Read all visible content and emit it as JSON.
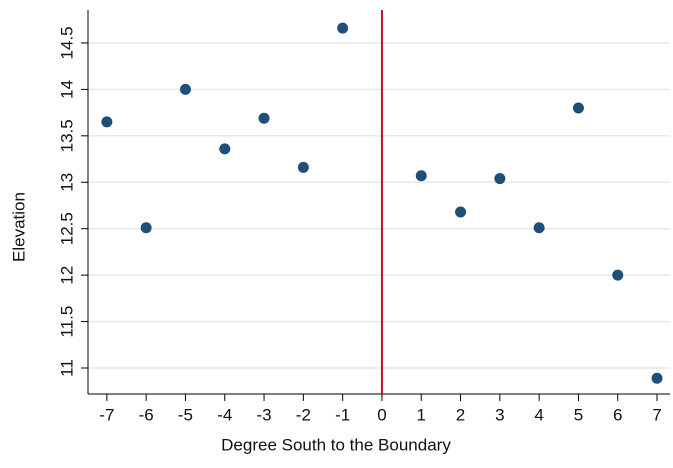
{
  "chart_data": {
    "type": "scatter",
    "x_label": "Degree South to the Boundary",
    "y_label": "Elevation",
    "x": [
      -7,
      -6,
      -5,
      -4,
      -3,
      -2,
      -1,
      1,
      2,
      3,
      4,
      5,
      6,
      7
    ],
    "series": [
      {
        "color": "#1f4e79",
        "values": [
          13.65,
          12.51,
          14.0,
          13.36,
          13.69,
          13.16,
          14.66,
          13.07,
          12.68,
          13.04,
          12.51,
          13.8,
          12.0,
          10.89
        ]
      }
    ],
    "xlim": [
      -7.48,
      7.33
    ],
    "ylim": [
      10.72,
      14.855
    ],
    "xticks": [
      -7,
      -6,
      -5,
      -4,
      -3,
      -2,
      -1,
      0,
      1,
      2,
      3,
      4,
      5,
      6,
      7
    ],
    "yticks": [
      11,
      11.5,
      12,
      12.5,
      13,
      13.5,
      14,
      14.5
    ],
    "grid": true,
    "reference_line_x": 0,
    "reference_line_color": "#c8102e"
  }
}
